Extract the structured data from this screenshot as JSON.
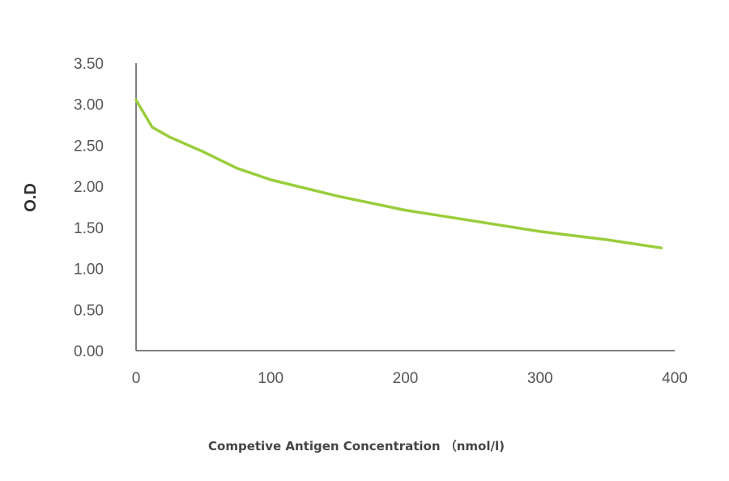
{
  "chart_data": {
    "type": "line",
    "xlabel": "Competive Antigen Concentration （nmol/l)",
    "ylabel": "O.D",
    "xlim": [
      0,
      400
    ],
    "ylim": [
      0,
      3.5
    ],
    "x_ticks": [
      "0",
      "100",
      "200",
      "300",
      "400"
    ],
    "y_ticks": [
      "0.00",
      "0.50",
      "1.00",
      "1.50",
      "2.00",
      "2.50",
      "3.00",
      "3.50"
    ],
    "grid": false,
    "series": [
      {
        "color": "#9acd3c",
        "x": [
          0,
          12,
          25,
          50,
          75,
          100,
          150,
          200,
          250,
          300,
          350,
          390
        ],
        "y": [
          3.05,
          2.72,
          2.6,
          2.42,
          2.22,
          2.08,
          1.88,
          1.71,
          1.58,
          1.45,
          1.35,
          1.25
        ]
      }
    ]
  }
}
